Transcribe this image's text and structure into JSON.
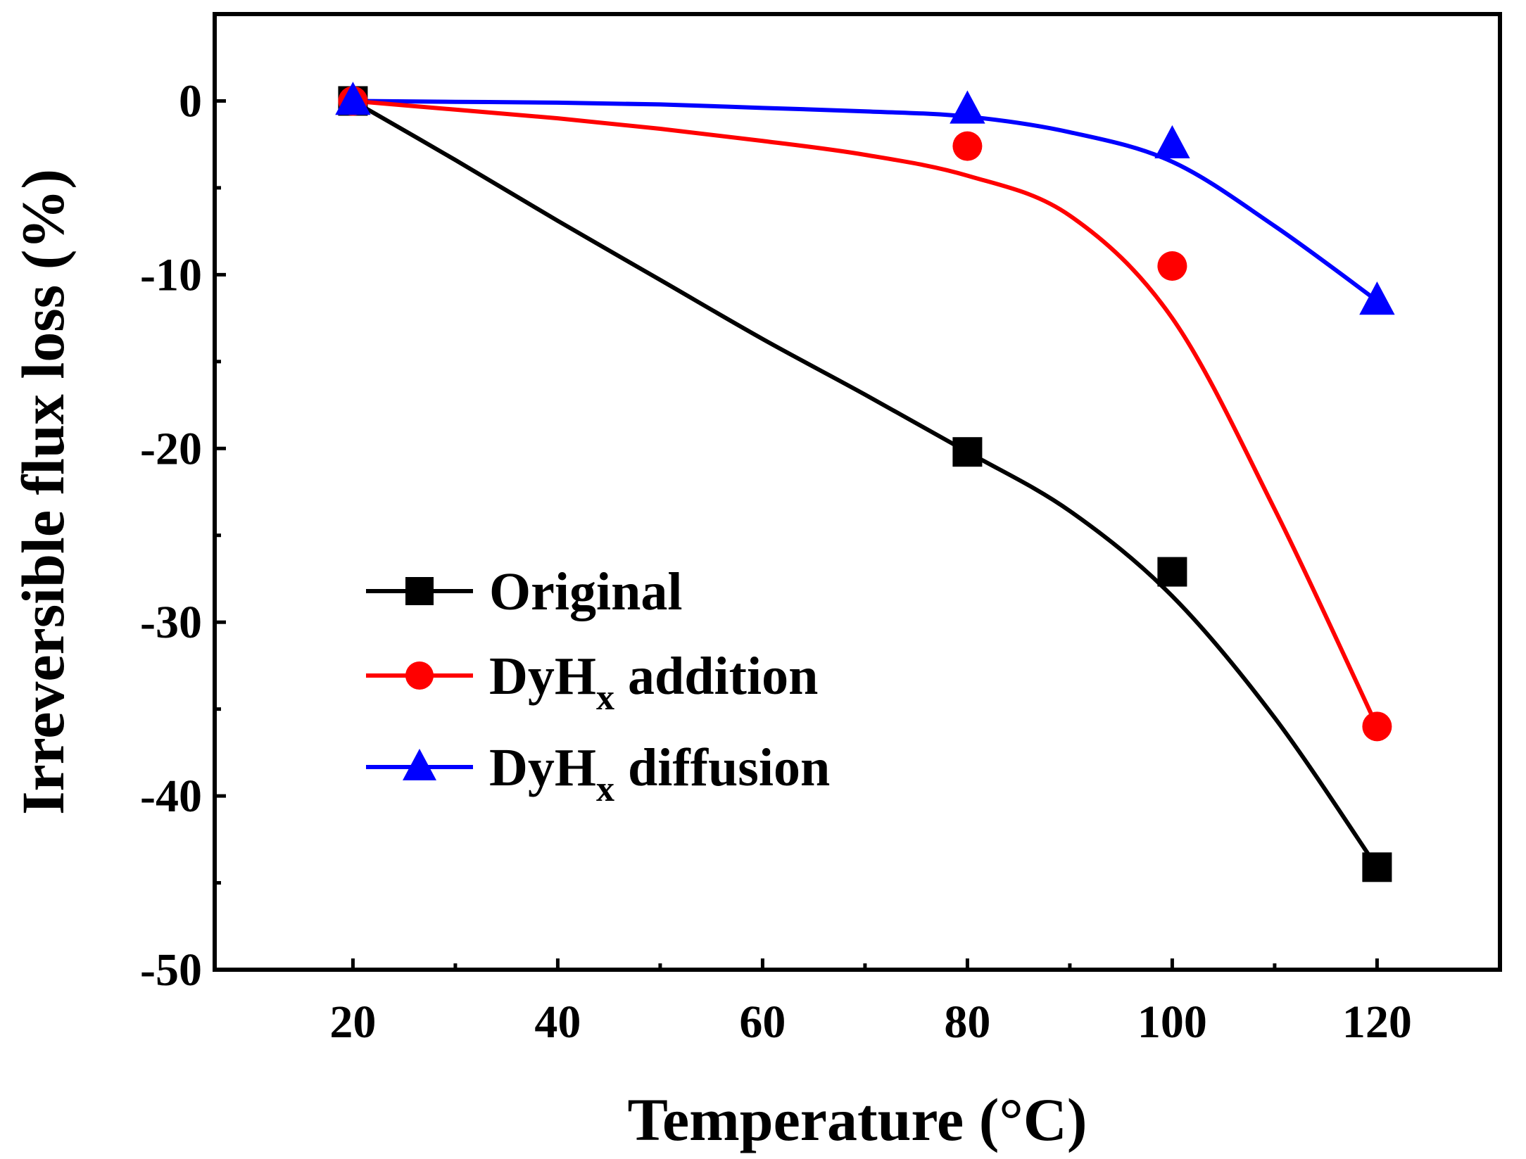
{
  "chart_data": {
    "type": "line",
    "title": "",
    "xlabel": "Temperature (°C)",
    "ylabel": "Irreversible flux loss (%)",
    "xlim": [
      6.5,
      132
    ],
    "ylim": [
      -50,
      5
    ],
    "xticks": [
      20,
      40,
      60,
      80,
      100,
      120
    ],
    "yticks": [
      0,
      -10,
      -20,
      -30,
      -40,
      -50
    ],
    "x": [
      20,
      80,
      100,
      120
    ],
    "legend_position": "center-left",
    "series": [
      {
        "name": "Original",
        "legend_main": "Original",
        "legend_sub": "",
        "legend_tail": "",
        "marker": "square",
        "color": "#000000",
        "values": [
          0,
          -20.2,
          -27.1,
          -44.1
        ],
        "fit": [
          [
            20,
            0
          ],
          [
            30,
            -3.4
          ],
          [
            40,
            -6.9
          ],
          [
            50,
            -10.3
          ],
          [
            60,
            -13.7
          ],
          [
            70,
            -16.9
          ],
          [
            80,
            -20.2
          ],
          [
            90,
            -23.6
          ],
          [
            100,
            -28.5
          ],
          [
            110,
            -35.5
          ],
          [
            120,
            -44.1
          ]
        ]
      },
      {
        "name": "DyHx addition",
        "legend_main": "DyH",
        "legend_sub": "x",
        "legend_tail": " addition",
        "marker": "circle",
        "color": "#ff0000",
        "values": [
          0,
          -2.6,
          -9.5,
          -36.0
        ],
        "fit": [
          [
            20,
            0
          ],
          [
            30,
            -0.5
          ],
          [
            40,
            -1.0
          ],
          [
            50,
            -1.6
          ],
          [
            60,
            -2.3
          ],
          [
            70,
            -3.1
          ],
          [
            80,
            -4.3
          ],
          [
            90,
            -6.6
          ],
          [
            100,
            -12.5
          ],
          [
            110,
            -23.5
          ],
          [
            120,
            -36.0
          ]
        ]
      },
      {
        "name": "DyHx diffusion",
        "legend_main": "DyH",
        "legend_sub": "x",
        "legend_tail": " diffusion",
        "marker": "triangle",
        "color": "#0000ff",
        "values": [
          0,
          -0.5,
          -2.5,
          -11.5
        ],
        "fit": [
          [
            20,
            0
          ],
          [
            30,
            -0.05
          ],
          [
            40,
            -0.1
          ],
          [
            50,
            -0.2
          ],
          [
            60,
            -0.4
          ],
          [
            70,
            -0.6
          ],
          [
            80,
            -0.9
          ],
          [
            90,
            -1.8
          ],
          [
            100,
            -3.5
          ],
          [
            110,
            -7.2
          ],
          [
            120,
            -11.5
          ]
        ]
      }
    ]
  }
}
